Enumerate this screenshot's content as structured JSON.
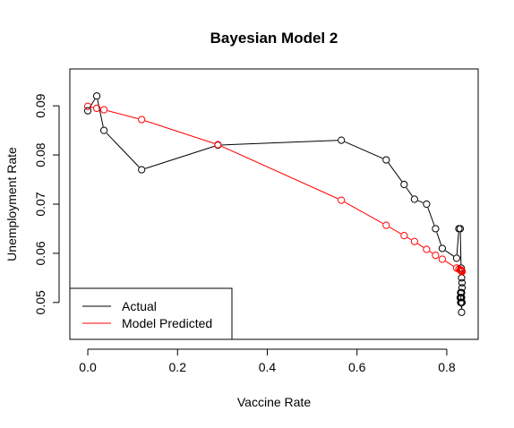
{
  "chart_data": {
    "type": "line",
    "title": "Bayesian Model 2",
    "xlabel": "Vaccine Rate",
    "ylabel": "Unemployment Rate",
    "xlim": [
      -0.04,
      0.87
    ],
    "ylim": [
      0.0425,
      0.0975
    ],
    "x_ticks": [
      0.0,
      0.2,
      0.4,
      0.6,
      0.8
    ],
    "x_tick_labels": [
      "0.0",
      "0.2",
      "0.4",
      "0.6",
      "0.8"
    ],
    "y_ticks": [
      0.05,
      0.06,
      0.07,
      0.08,
      0.09
    ],
    "y_tick_labels": [
      "0.05",
      "0.06",
      "0.07",
      "0.08",
      "0.09"
    ],
    "grid": false,
    "legend": {
      "position": "bottom-left"
    },
    "series": [
      {
        "name": "Actual",
        "color": "#000000",
        "marker": "open-circle",
        "x": [
          0.0,
          0.02,
          0.036,
          0.12,
          0.29,
          0.565,
          0.665,
          0.705,
          0.728,
          0.755,
          0.775,
          0.79,
          0.822,
          0.827,
          0.83,
          0.832,
          0.833,
          0.834,
          0.834,
          0.833,
          0.832,
          0.831,
          0.83,
          0.831,
          0.832,
          0.833,
          0.834,
          0.833,
          0.832,
          0.831
        ],
        "y": [
          0.089,
          0.092,
          0.085,
          0.077,
          0.082,
          0.083,
          0.079,
          0.074,
          0.071,
          0.07,
          0.065,
          0.061,
          0.059,
          0.065,
          0.065,
          0.057,
          0.055,
          0.054,
          0.053,
          0.052,
          0.051,
          0.05,
          0.051,
          0.052,
          0.05,
          0.048,
          0.05,
          0.051,
          0.052,
          0.051
        ]
      },
      {
        "name": "Model Predicted",
        "color": "#ff0000",
        "marker": "open-circle",
        "x": [
          0.0,
          0.02,
          0.036,
          0.12,
          0.29,
          0.565,
          0.665,
          0.705,
          0.728,
          0.755,
          0.775,
          0.79,
          0.822,
          0.827,
          0.83,
          0.832,
          0.833,
          0.834,
          0.834,
          0.833,
          0.832,
          0.831,
          0.83,
          0.831,
          0.832,
          0.833,
          0.834,
          0.833,
          0.832,
          0.831
        ],
        "y": [
          0.0899,
          0.0895,
          0.0892,
          0.0872,
          0.0821,
          0.0708,
          0.0657,
          0.0636,
          0.0624,
          0.0608,
          0.0596,
          0.0588,
          0.057,
          0.0568,
          0.0566,
          0.0565,
          0.0564,
          0.0564,
          0.0563,
          0.0564,
          0.0565,
          0.0566,
          0.0566,
          0.0566,
          0.0565,
          0.0564,
          0.0563,
          0.0564,
          0.0565,
          0.0566
        ]
      }
    ]
  }
}
